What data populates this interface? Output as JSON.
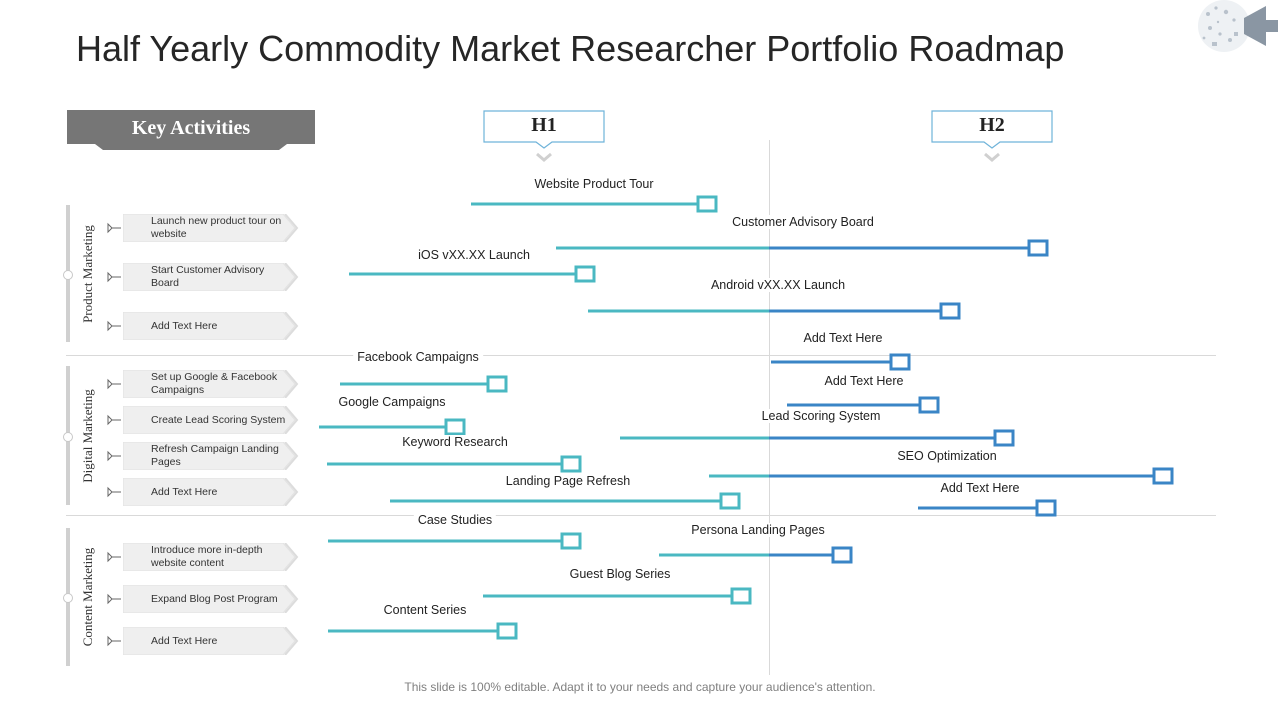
{
  "title": "Half Yearly Commodity Market Researcher Portfolio Roadmap",
  "key_activities_label": "Key Activities",
  "halves": [
    "H1",
    "H2"
  ],
  "footer": "This slide is 100% editable. Adapt it to your needs and capture your audience's attention.",
  "colors": {
    "h1_bar": "#4ab8c2",
    "h2_bar": "#3a85c6",
    "banner": "#767676"
  },
  "categories": [
    {
      "label": "Product Marketing",
      "activities": [
        "Launch new product tour on website",
        "Start Customer Advisory Board",
        "Add Text Here"
      ]
    },
    {
      "label": "Digital Marketing",
      "activities": [
        "Set up Google & Facebook Campaigns",
        "Create Lead Scoring System",
        "Refresh Campaign Landing Pages",
        "Add Text Here"
      ]
    },
    {
      "label": "Content Marketing",
      "activities": [
        "Introduce more in-depth website content",
        "Expand Blog Post Program",
        "Add Text Here"
      ]
    }
  ],
  "roadmap_items": [
    {
      "label": "Website Product Tour"
    },
    {
      "label": "Customer Advisory Board"
    },
    {
      "label": "iOS vXX.XX  Launch"
    },
    {
      "label": "Android vXX.XX  Launch"
    },
    {
      "label": "Add Text Here"
    },
    {
      "label": "Facebook Campaigns"
    },
    {
      "label": "Add Text Here"
    },
    {
      "label": "Google Campaigns"
    },
    {
      "label": "Lead Scoring System"
    },
    {
      "label": "Keyword Research"
    },
    {
      "label": "SEO Optimization"
    },
    {
      "label": "Landing Page Refresh"
    },
    {
      "label": "Add Text Here"
    },
    {
      "label": "Case Studies"
    },
    {
      "label": "Persona Landing Pages"
    },
    {
      "label": "Guest Blog Series"
    },
    {
      "label": "Content Series"
    }
  ]
}
